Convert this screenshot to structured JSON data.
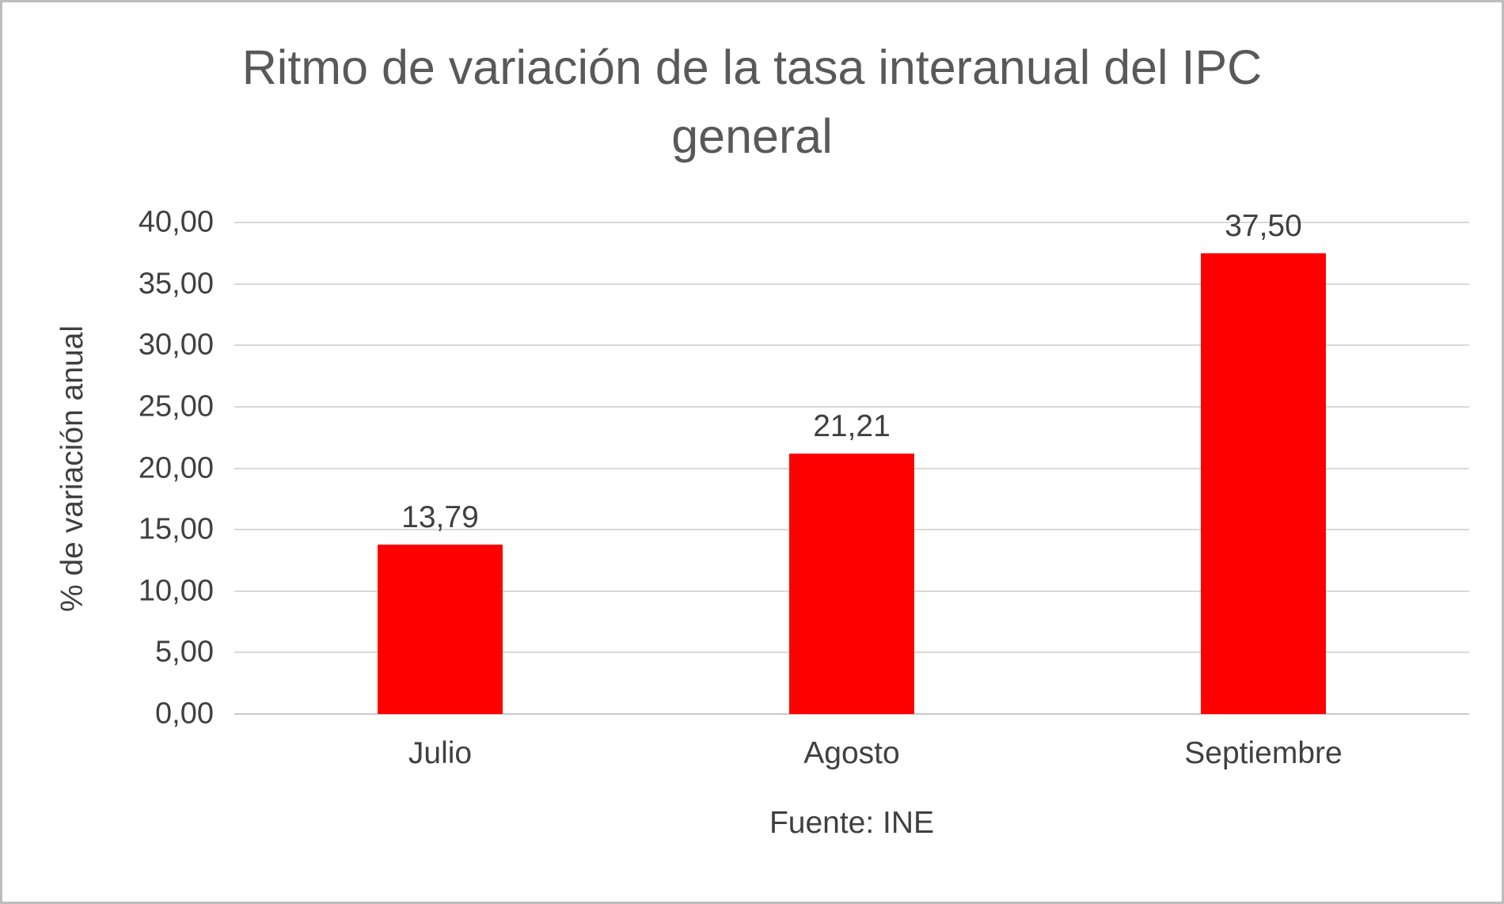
{
  "chart_data": {
    "type": "bar",
    "title": "Ritmo de variación de la tasa interanual del IPC general",
    "ylabel": "% de variación anual",
    "xlabel": "",
    "source_note": "Fuente: INE",
    "categories": [
      "Julio",
      "Agosto",
      "Septiembre"
    ],
    "values": [
      13.79,
      21.21,
      37.5
    ],
    "value_labels": [
      "13,79",
      "21,21",
      "37,50"
    ],
    "ylim": [
      0,
      40
    ],
    "yticks": [
      {
        "label": "0,00",
        "value": 0
      },
      {
        "label": "5,00",
        "value": 5
      },
      {
        "label": "10,00",
        "value": 10
      },
      {
        "label": "15,00",
        "value": 15
      },
      {
        "label": "20,00",
        "value": 20
      },
      {
        "label": "25,00",
        "value": 25
      },
      {
        "label": "30,00",
        "value": 30
      },
      {
        "label": "35,00",
        "value": 35
      },
      {
        "label": "40,00",
        "value": 40
      }
    ],
    "grid": "horizontal",
    "legend": "none",
    "bar_color": "#ff0000",
    "title_color": "#595959",
    "axis_text_color": "#404040",
    "gridline_color": "#d9d9d9"
  }
}
